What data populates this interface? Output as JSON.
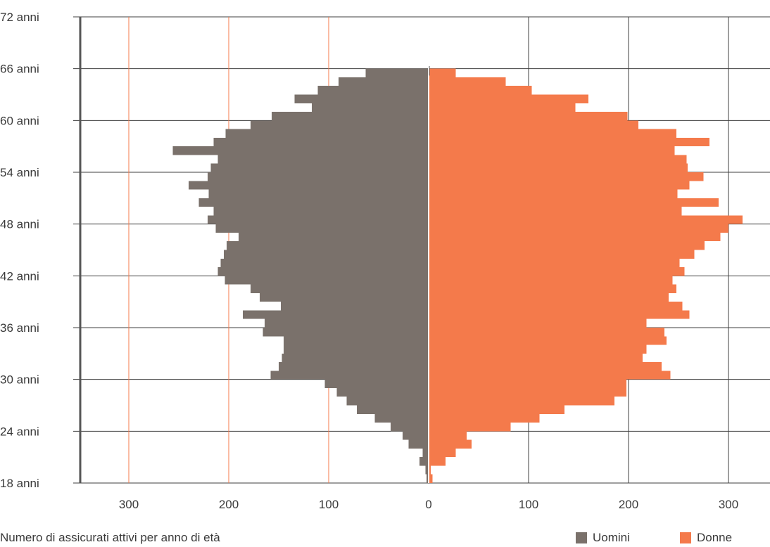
{
  "colors": {
    "men": "#7a716b",
    "women": "#f47a4b",
    "grid": "#3f3f3f",
    "grid_left": "#f47a4b"
  },
  "caption": "Numero di assicurati attivi per anno di età",
  "legend": [
    {
      "label": "Uomini",
      "color": "#7a716b"
    },
    {
      "label": "Donne",
      "color": "#f47a4b"
    }
  ],
  "chart_data": {
    "type": "bar",
    "orientation": "horizontal-population-pyramid",
    "title": "",
    "xlabel": "",
    "ylabel": "",
    "x_ticks": [
      {
        "value": -300,
        "label": "300"
      },
      {
        "value": -200,
        "label": "200"
      },
      {
        "value": -100,
        "label": "100"
      },
      {
        "value": 0,
        "label": "0"
      },
      {
        "value": 100,
        "label": "100"
      },
      {
        "value": 200,
        "label": "200"
      },
      {
        "value": 300,
        "label": "300"
      }
    ],
    "y_ticks": [
      {
        "value": 18,
        "label": "18 anni"
      },
      {
        "value": 24,
        "label": "24 anni"
      },
      {
        "value": 30,
        "label": "30 anni"
      },
      {
        "value": 36,
        "label": "36 anni"
      },
      {
        "value": 42,
        "label": "42 anni"
      },
      {
        "value": 48,
        "label": "48 anni"
      },
      {
        "value": 54,
        "label": "54 anni"
      },
      {
        "value": 60,
        "label": "60 anni"
      },
      {
        "value": 66,
        "label": "66 anni"
      },
      {
        "value": 72,
        "label": "72 anni"
      }
    ],
    "xlim": [
      -350,
      340
    ],
    "ylim": [
      18,
      72
    ],
    "legend_position": "bottom-right",
    "categories": [
      18,
      19,
      20,
      21,
      22,
      23,
      24,
      25,
      26,
      27,
      28,
      29,
      30,
      31,
      32,
      33,
      34,
      35,
      36,
      37,
      38,
      39,
      40,
      41,
      42,
      43,
      44,
      45,
      46,
      47,
      48,
      49,
      50,
      51,
      52,
      53,
      54,
      55,
      56,
      57,
      58,
      59,
      60,
      61,
      62,
      63,
      64,
      65
    ],
    "series": [
      {
        "name": "Uomini",
        "values": [
          2,
          3,
          9,
          6,
          20,
          26,
          38,
          54,
          72,
          82,
          92,
          104,
          158,
          150,
          147,
          145,
          145,
          166,
          164,
          186,
          148,
          169,
          178,
          204,
          211,
          208,
          205,
          202,
          190,
          213,
          221,
          215,
          230,
          220,
          240,
          221,
          218,
          211,
          256,
          215,
          203,
          178,
          157,
          117,
          134,
          111,
          90,
          63
        ]
      },
      {
        "name": "Donne",
        "values": [
          4,
          2,
          17,
          27,
          43,
          38,
          82,
          111,
          136,
          186,
          198,
          198,
          242,
          233,
          214,
          218,
          238,
          236,
          218,
          261,
          254,
          240,
          248,
          244,
          256,
          251,
          266,
          276,
          292,
          300,
          314,
          253,
          290,
          249,
          261,
          275,
          259,
          258,
          246,
          281,
          248,
          210,
          199,
          147,
          160,
          103,
          77,
          27
        ]
      }
    ]
  }
}
